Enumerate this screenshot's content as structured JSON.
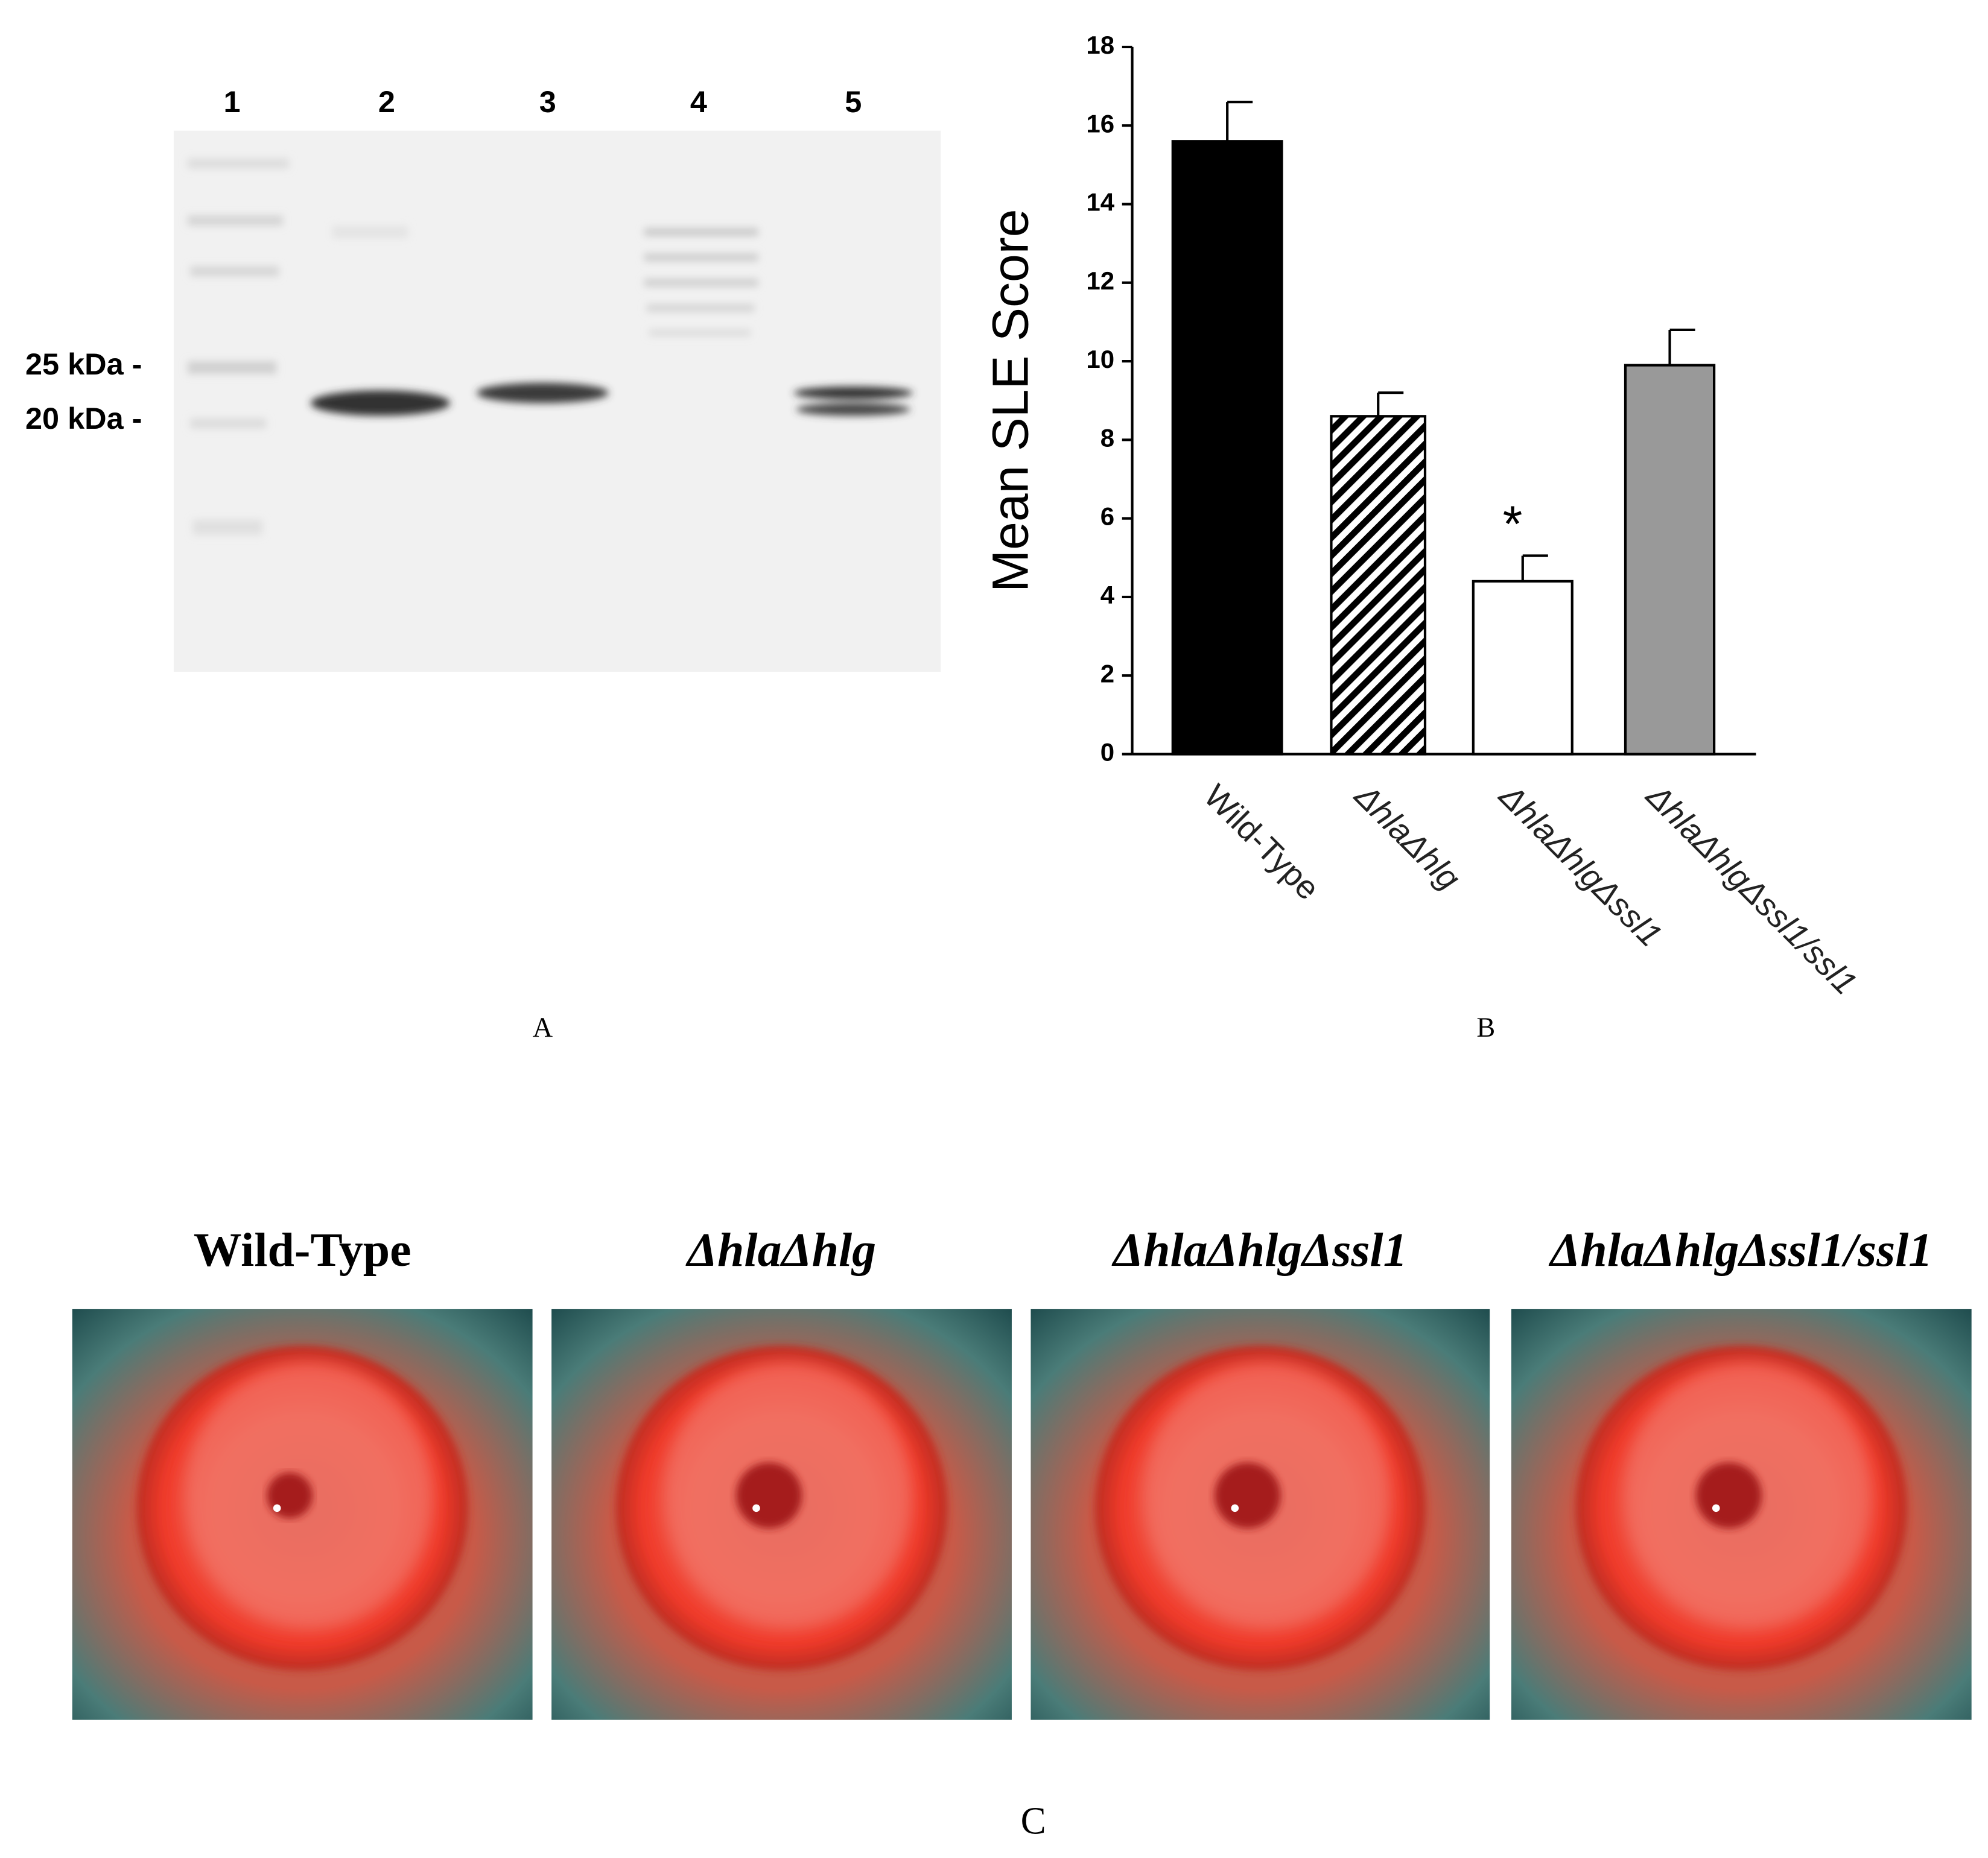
{
  "panel_a": {
    "lane_labels": [
      "1",
      "2",
      "3",
      "4",
      "5"
    ],
    "markers": [
      "25 kDa -",
      "20 kDa -"
    ],
    "label": "A"
  },
  "chart_data": {
    "type": "bar",
    "y_label": "Mean SLE Score",
    "categories": [
      "Wild-Type",
      "ΔhlaΔhlg",
      "ΔhlaΔhlgΔssl1",
      "ΔhlaΔhlgΔssl1/ssl1"
    ],
    "values": [
      15.6,
      8.6,
      4.4,
      9.9
    ],
    "errors": [
      1.0,
      0.6,
      0.65,
      0.9
    ],
    "bar_fills": [
      "#000000",
      "hatched",
      "#ffffff",
      "#999999"
    ],
    "annotation": "*",
    "ylim": [
      0,
      18
    ],
    "yticks": [
      0,
      2,
      4,
      6,
      8,
      10,
      12,
      14,
      16,
      18
    ],
    "grid": false,
    "label": "B"
  },
  "panel_c": {
    "titles": [
      "Wild-Type",
      "ΔhlaΔhlg",
      "ΔhlaΔhlgΔssl1",
      "ΔhlaΔhlgΔssl1/ssl1"
    ],
    "label": "C"
  }
}
